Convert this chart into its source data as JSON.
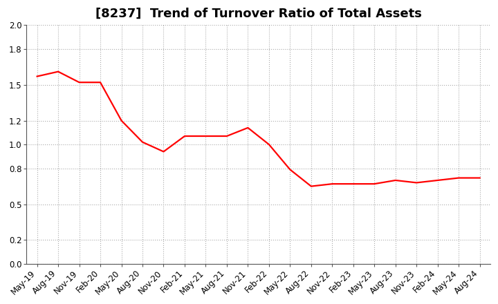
{
  "title": "[8237]  Trend of Turnover Ratio of Total Assets",
  "x_labels": [
    "May-19",
    "Aug-19",
    "Nov-19",
    "Feb-20",
    "May-20",
    "Aug-20",
    "Nov-20",
    "Feb-21",
    "May-21",
    "Aug-21",
    "Nov-21",
    "Feb-22",
    "May-22",
    "Aug-22",
    "Nov-22",
    "Feb-23",
    "May-23",
    "Aug-23",
    "Nov-23",
    "Feb-24",
    "May-24",
    "Aug-24"
  ],
  "values": [
    1.57,
    1.61,
    1.52,
    1.52,
    1.2,
    1.02,
    0.94,
    1.07,
    1.07,
    1.07,
    1.14,
    1.0,
    0.79,
    0.65,
    0.67,
    0.67,
    0.67,
    0.7,
    0.68,
    0.7,
    0.72,
    0.72
  ],
  "line_color": "#FF0000",
  "line_width": 1.6,
  "ylim": [
    0.0,
    2.0
  ],
  "yticks": [
    0.0,
    0.2,
    0.5,
    0.8,
    1.0,
    1.2,
    1.5,
    1.8,
    2.0
  ],
  "ytick_labels": [
    "0.0",
    "0.2",
    "0.5",
    "0.8",
    "1.0",
    "1.2",
    "1.5",
    "1.8",
    "2.0"
  ],
  "grid_color": "#aaaaaa",
  "background_color": "#ffffff",
  "title_fontsize": 13,
  "tick_fontsize": 8.5
}
